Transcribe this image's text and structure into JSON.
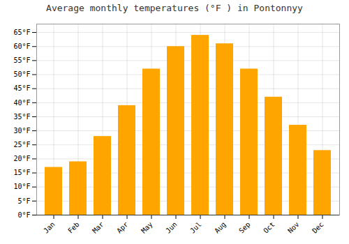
{
  "chart_data": {
    "type": "bar",
    "title": "Average monthly temperatures (°F ) in Pontonnyy",
    "categories": [
      "Jan",
      "Feb",
      "Mar",
      "Apr",
      "May",
      "Jun",
      "Jul",
      "Aug",
      "Sep",
      "Oct",
      "Nov",
      "Dec"
    ],
    "values": [
      17,
      19,
      28,
      39,
      52,
      60,
      64,
      61,
      52,
      42,
      32,
      23
    ],
    "color": "#FFA500",
    "ylim": [
      0,
      68
    ],
    "yticks": [
      {
        "value": 0,
        "label": "0°F"
      },
      {
        "value": 5,
        "label": "5°F"
      },
      {
        "value": 10,
        "label": "10°F"
      },
      {
        "value": 15,
        "label": "15°F"
      },
      {
        "value": 20,
        "label": "20°F"
      },
      {
        "value": 25,
        "label": "25°F"
      },
      {
        "value": 30,
        "label": "30°F"
      },
      {
        "value": 35,
        "label": "35°F"
      },
      {
        "value": 40,
        "label": "40°F"
      },
      {
        "value": 45,
        "label": "45°F"
      },
      {
        "value": 50,
        "label": "50°F"
      },
      {
        "value": 55,
        "label": "55°F"
      },
      {
        "value": 60,
        "label": "60°F"
      },
      {
        "value": 65,
        "label": "65°F"
      }
    ],
    "grid": true
  }
}
